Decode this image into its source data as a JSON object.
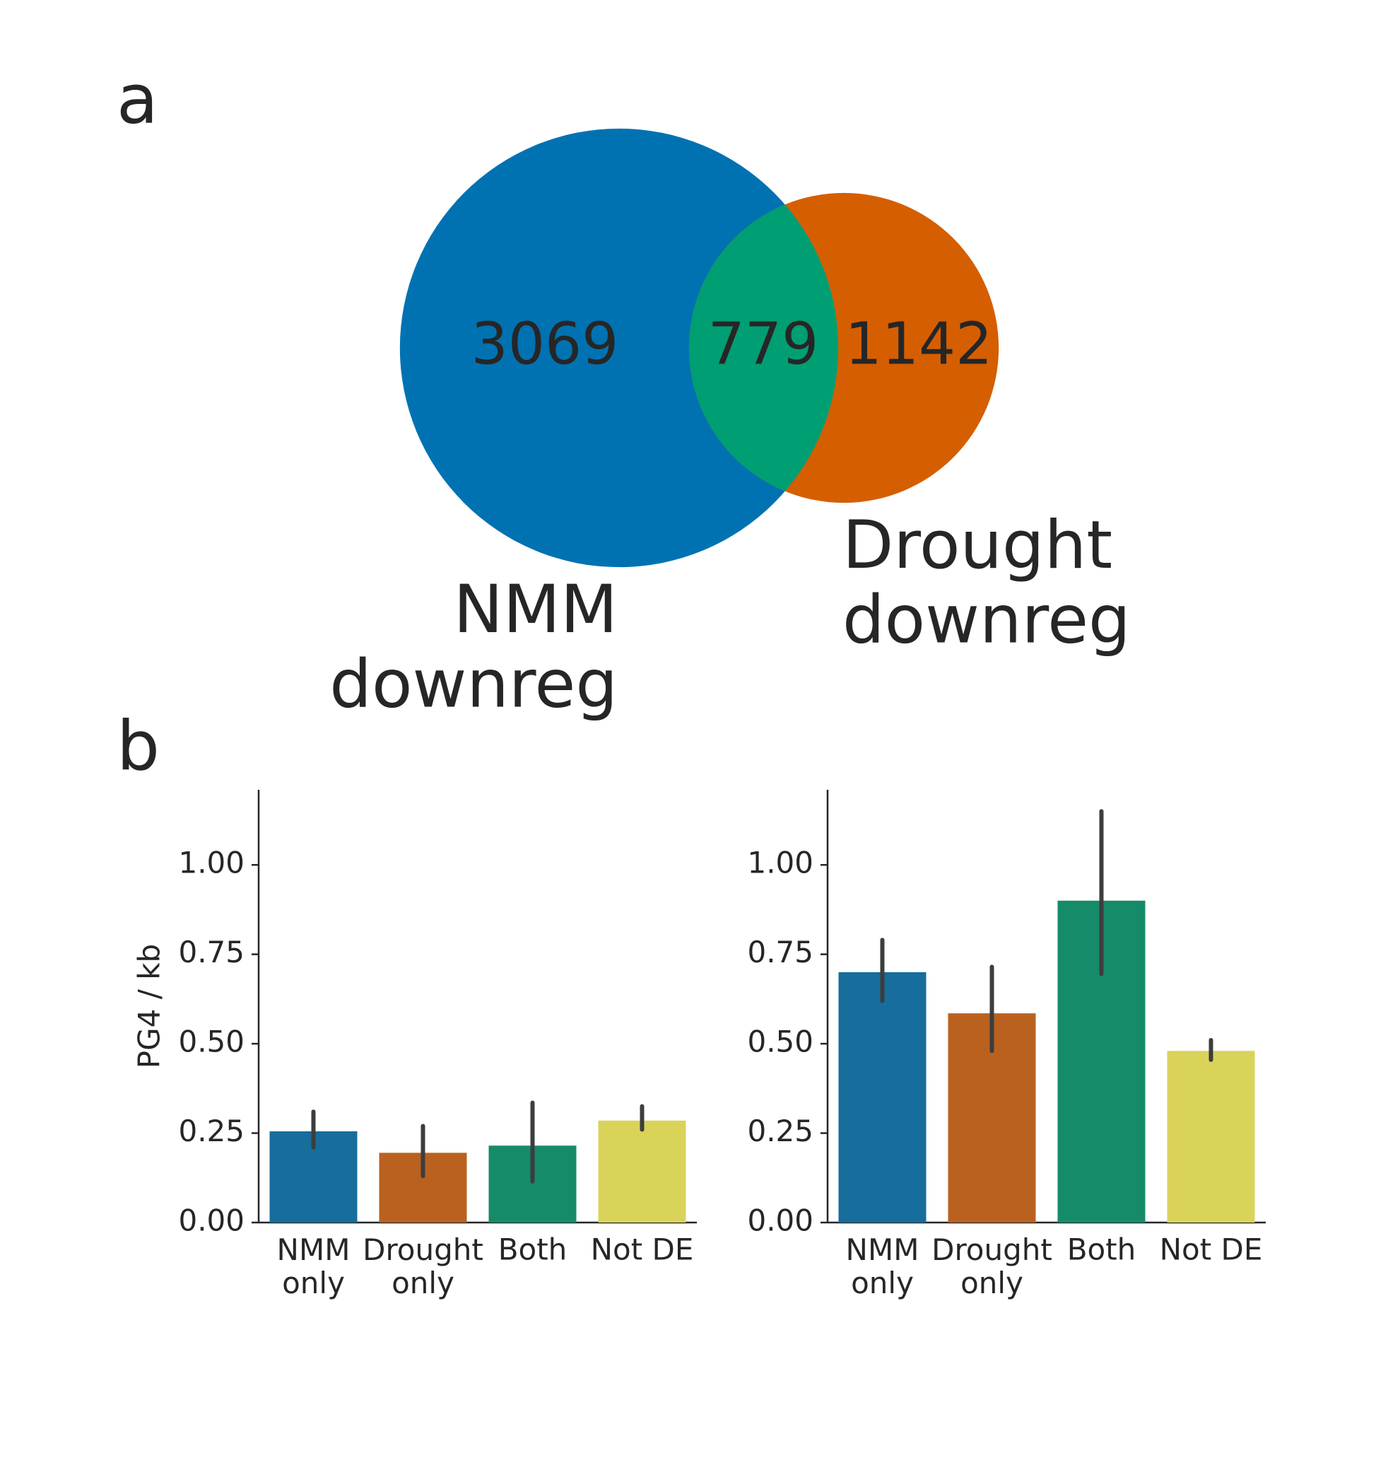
{
  "panel_labels": [
    "a",
    "b"
  ],
  "chart_data": [
    {
      "type": "venn",
      "series": [
        {
          "name": "NMM\ndownreg",
          "color": "#0072b2"
        },
        {
          "name": "Drought\ndownreg",
          "color": "#d55e00"
        }
      ],
      "values": [
        3069,
        779,
        1142
      ],
      "overlap_color": "#009e73"
    },
    {
      "type": "bar",
      "ylabel": "PG4 / kb",
      "categories": [
        "NMM\nonly",
        "Drought\nonly",
        "Both",
        "Not DE"
      ],
      "values": [
        0.255,
        0.195,
        0.215,
        0.285
      ],
      "errors": [
        [
          0.21,
          0.31
        ],
        [
          0.13,
          0.27
        ],
        [
          0.115,
          0.335
        ],
        [
          0.26,
          0.325
        ]
      ],
      "colors": [
        "#176d9c",
        "#ba611f",
        "#168b69",
        "#dad35a"
      ],
      "ylim": [
        0,
        1.21
      ],
      "yticks": [
        {
          "value": 0,
          "label": "0.00"
        },
        {
          "value": 0.25,
          "label": "0.25"
        },
        {
          "value": 0.5,
          "label": "0.50"
        },
        {
          "value": 0.75,
          "label": "0.75"
        },
        {
          "value": 1,
          "label": "1.00"
        }
      ]
    },
    {
      "type": "bar",
      "categories": [
        "NMM\nonly",
        "Drought\nonly",
        "Both",
        "Not DE"
      ],
      "values": [
        0.7,
        0.585,
        0.9,
        0.48
      ],
      "errors": [
        [
          0.62,
          0.79
        ],
        [
          0.48,
          0.715
        ],
        [
          0.695,
          1.15
        ],
        [
          0.455,
          0.51
        ]
      ],
      "colors": [
        "#176d9c",
        "#ba611f",
        "#168b69",
        "#dad35a"
      ],
      "ylim": [
        0,
        1.21
      ],
      "yticks": [
        {
          "value": 0,
          "label": "0.00"
        },
        {
          "value": 0.25,
          "label": "0.25"
        },
        {
          "value": 0.5,
          "label": "0.50"
        },
        {
          "value": 0.75,
          "label": "0.75"
        },
        {
          "value": 1,
          "label": "1.00"
        }
      ]
    }
  ]
}
